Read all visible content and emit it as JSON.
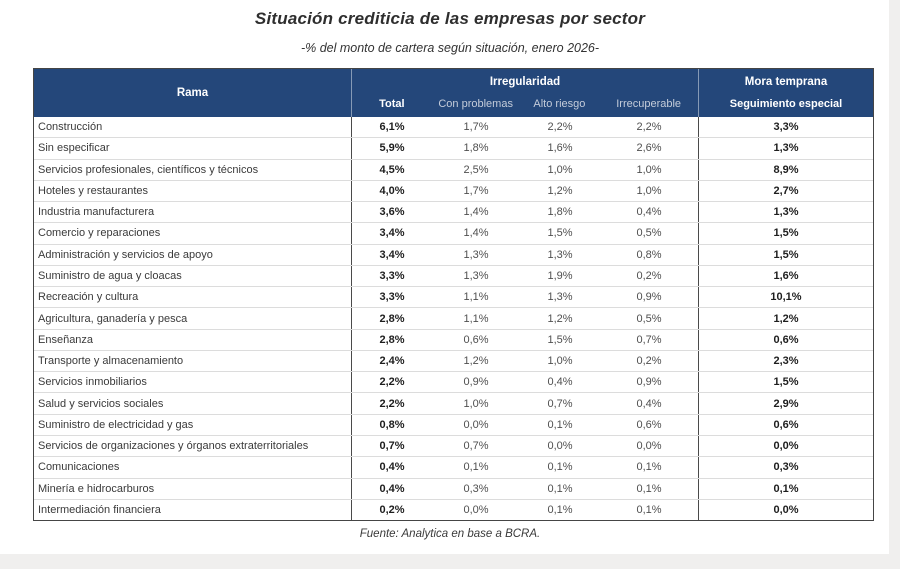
{
  "header": {
    "title": "Situación crediticia de las empresas por sector",
    "subtitle": "-% del monto de cartera según situación, enero 2026-"
  },
  "table": {
    "col_rama": "Rama",
    "group_irregularidad": "Irregularidad",
    "group_mora_temprana": "Mora temprana",
    "sub_total": "Total",
    "sub_con_problemas": "Con problemas",
    "sub_alto_riesgo": "Alto riesgo",
    "sub_irrecuperable": "Irrecuperable",
    "sub_seguimiento_especial": "Seguimiento especial",
    "rows": [
      {
        "rama": "Construcción",
        "total": "6,1%",
        "con_problemas": "1,7%",
        "alto_riesgo": "2,2%",
        "irrecuperable": "2,2%",
        "seguimiento": "3,3%"
      },
      {
        "rama": "Sin especificar",
        "total": "5,9%",
        "con_problemas": "1,8%",
        "alto_riesgo": "1,6%",
        "irrecuperable": "2,6%",
        "seguimiento": "1,3%"
      },
      {
        "rama": "Servicios profesionales, científicos y técnicos",
        "total": "4,5%",
        "con_problemas": "2,5%",
        "alto_riesgo": "1,0%",
        "irrecuperable": "1,0%",
        "seguimiento": "8,9%"
      },
      {
        "rama": "Hoteles y restaurantes",
        "total": "4,0%",
        "con_problemas": "1,7%",
        "alto_riesgo": "1,2%",
        "irrecuperable": "1,0%",
        "seguimiento": "2,7%"
      },
      {
        "rama": "Industria manufacturera",
        "total": "3,6%",
        "con_problemas": "1,4%",
        "alto_riesgo": "1,8%",
        "irrecuperable": "0,4%",
        "seguimiento": "1,3%"
      },
      {
        "rama": "Comercio y reparaciones",
        "total": "3,4%",
        "con_problemas": "1,4%",
        "alto_riesgo": "1,5%",
        "irrecuperable": "0,5%",
        "seguimiento": "1,5%"
      },
      {
        "rama": "Administración y servicios de apoyo",
        "total": "3,4%",
        "con_problemas": "1,3%",
        "alto_riesgo": "1,3%",
        "irrecuperable": "0,8%",
        "seguimiento": "1,5%"
      },
      {
        "rama": "Suministro de agua y cloacas",
        "total": "3,3%",
        "con_problemas": "1,3%",
        "alto_riesgo": "1,9%",
        "irrecuperable": "0,2%",
        "seguimiento": "1,6%"
      },
      {
        "rama": "Recreación y cultura",
        "total": "3,3%",
        "con_problemas": "1,1%",
        "alto_riesgo": "1,3%",
        "irrecuperable": "0,9%",
        "seguimiento": "10,1%"
      },
      {
        "rama": "Agricultura, ganadería y pesca",
        "total": "2,8%",
        "con_problemas": "1,1%",
        "alto_riesgo": "1,2%",
        "irrecuperable": "0,5%",
        "seguimiento": "1,2%"
      },
      {
        "rama": "Enseñanza",
        "total": "2,8%",
        "con_problemas": "0,6%",
        "alto_riesgo": "1,5%",
        "irrecuperable": "0,7%",
        "seguimiento": "0,6%"
      },
      {
        "rama": "Transporte y almacenamiento",
        "total": "2,4%",
        "con_problemas": "1,2%",
        "alto_riesgo": "1,0%",
        "irrecuperable": "0,2%",
        "seguimiento": "2,3%"
      },
      {
        "rama": "Servicios inmobiliarios",
        "total": "2,2%",
        "con_problemas": "0,9%",
        "alto_riesgo": "0,4%",
        "irrecuperable": "0,9%",
        "seguimiento": "1,5%"
      },
      {
        "rama": "Salud y servicios sociales",
        "total": "2,2%",
        "con_problemas": "1,0%",
        "alto_riesgo": "0,7%",
        "irrecuperable": "0,4%",
        "seguimiento": "2,9%"
      },
      {
        "rama": "Suministro de electricidad y gas",
        "total": "0,8%",
        "con_problemas": "0,0%",
        "alto_riesgo": "0,1%",
        "irrecuperable": "0,6%",
        "seguimiento": "0,6%"
      },
      {
        "rama": "Servicios de organizaciones y órganos extraterritoriales",
        "total": "0,7%",
        "con_problemas": "0,7%",
        "alto_riesgo": "0,0%",
        "irrecuperable": "0,0%",
        "seguimiento": "0,0%"
      },
      {
        "rama": "Comunicaciones",
        "total": "0,4%",
        "con_problemas": "0,1%",
        "alto_riesgo": "0,1%",
        "irrecuperable": "0,1%",
        "seguimiento": "0,3%"
      },
      {
        "rama": "Minería e hidrocarburos",
        "total": "0,4%",
        "con_problemas": "0,3%",
        "alto_riesgo": "0,1%",
        "irrecuperable": "0,1%",
        "seguimiento": "0,1%"
      },
      {
        "rama": "Intermediación financiera",
        "total": "0,2%",
        "con_problemas": "0,0%",
        "alto_riesgo": "0,1%",
        "irrecuperable": "0,1%",
        "seguimiento": "0,0%"
      }
    ]
  },
  "footer": {
    "source": "Fuente: Analytica en base a BCRA."
  },
  "colors": {
    "header_bg": "#24477A",
    "header_text": "#FFFFFF",
    "header_dim_text": "#C4CCDA",
    "border_dark": "#454545",
    "row_divider": "#DCDCDC",
    "bold_value_text": "#1E1E1E",
    "value_text": "#4F4F4F"
  },
  "chart_data": {
    "type": "table",
    "title": "Situación crediticia de las empresas por sector",
    "subtitle": "-% del monto de cartera según situación, enero 2026-",
    "source": "Fuente: Analytica en base a BCRA.",
    "units": "%",
    "column_groups": [
      {
        "label": "Rama",
        "columns": [
          "Rama"
        ]
      },
      {
        "label": "Irregularidad",
        "columns": [
          "Total",
          "Con problemas",
          "Alto riesgo",
          "Irrecuperable"
        ]
      },
      {
        "label": "Mora temprana",
        "columns": [
          "Seguimiento especial"
        ]
      }
    ],
    "columns": [
      "Rama",
      "Total",
      "Con problemas",
      "Alto riesgo",
      "Irrecuperable",
      "Seguimiento especial"
    ],
    "rows": [
      [
        "Construcción",
        6.1,
        1.7,
        2.2,
        2.2,
        3.3
      ],
      [
        "Sin especificar",
        5.9,
        1.8,
        1.6,
        2.6,
        1.3
      ],
      [
        "Servicios profesionales, científicos y técnicos",
        4.5,
        2.5,
        1.0,
        1.0,
        8.9
      ],
      [
        "Hoteles y restaurantes",
        4.0,
        1.7,
        1.2,
        1.0,
        2.7
      ],
      [
        "Industria manufacturera",
        3.6,
        1.4,
        1.8,
        0.4,
        1.3
      ],
      [
        "Comercio y reparaciones",
        3.4,
        1.4,
        1.5,
        0.5,
        1.5
      ],
      [
        "Administración y servicios de apoyo",
        3.4,
        1.3,
        1.3,
        0.8,
        1.5
      ],
      [
        "Suministro de agua y cloacas",
        3.3,
        1.3,
        1.9,
        0.2,
        1.6
      ],
      [
        "Recreación y cultura",
        3.3,
        1.1,
        1.3,
        0.9,
        10.1
      ],
      [
        "Agricultura, ganadería y pesca",
        2.8,
        1.1,
        1.2,
        0.5,
        1.2
      ],
      [
        "Enseñanza",
        2.8,
        0.6,
        1.5,
        0.7,
        0.6
      ],
      [
        "Transporte y almacenamiento",
        2.4,
        1.2,
        1.0,
        0.2,
        2.3
      ],
      [
        "Servicios inmobiliarios",
        2.2,
        0.9,
        0.4,
        0.9,
        1.5
      ],
      [
        "Salud y servicios sociales",
        2.2,
        1.0,
        0.7,
        0.4,
        2.9
      ],
      [
        "Suministro de electricidad y gas",
        0.8,
        0.0,
        0.1,
        0.6,
        0.6
      ],
      [
        "Servicios de organizaciones y órganos extraterritoriales",
        0.7,
        0.7,
        0.0,
        0.0,
        0.0
      ],
      [
        "Comunicaciones",
        0.4,
        0.1,
        0.1,
        0.1,
        0.3
      ],
      [
        "Minería e hidrocarburos",
        0.4,
        0.3,
        0.1,
        0.1,
        0.1
      ],
      [
        "Intermediación financiera",
        0.2,
        0.0,
        0.1,
        0.1,
        0.0
      ]
    ]
  }
}
